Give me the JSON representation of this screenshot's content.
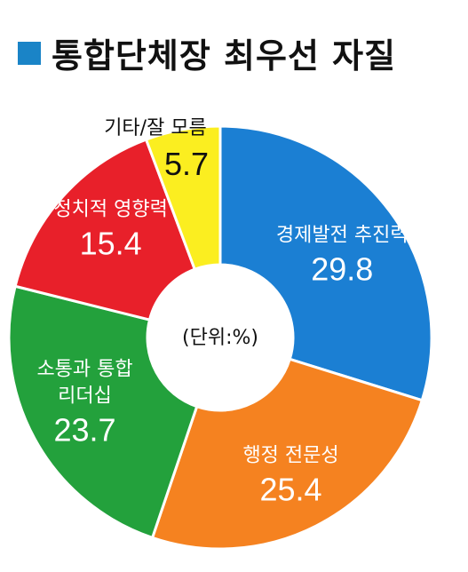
{
  "chart_data": {
    "type": "pie",
    "title": "통합단체장 최우선 자질",
    "unit_note": "(단위:%)",
    "slices": [
      {
        "label": "경제발전 추진력",
        "value": 29.8,
        "value_text": "29.8",
        "color": "#1b7fd3",
        "text_color": "#ffffff"
      },
      {
        "label": "행정 전문성",
        "value": 25.4,
        "value_text": "25.4",
        "color": "#f58220",
        "text_color": "#ffffff"
      },
      {
        "label": "소통과 통합 리더십",
        "value": 23.7,
        "value_text": "23.7",
        "color": "#23a13c",
        "text_color": "#ffffff"
      },
      {
        "label": "정치적 영향력",
        "value": 15.4,
        "value_text": "15.4",
        "color": "#e8202a",
        "text_color": "#ffffff"
      },
      {
        "label": "기타/잘 모름",
        "value": 5.7,
        "value_text": "5.7",
        "color": "#fbee20",
        "text_color": "#111111"
      }
    ],
    "accent_color": "#1a84c7"
  }
}
